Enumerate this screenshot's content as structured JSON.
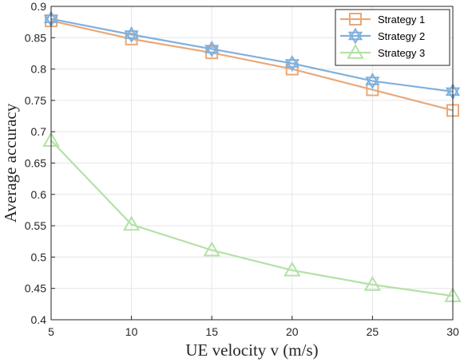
{
  "chart_data": {
    "type": "line",
    "title": "",
    "xlabel": "UE velocity v (m/s)",
    "ylabel": "Average accuracy",
    "x": [
      5,
      10,
      15,
      20,
      25,
      30
    ],
    "xlim": [
      5,
      30
    ],
    "ylim": [
      0.4,
      0.9
    ],
    "xticks": [
      "5",
      "10",
      "15",
      "20",
      "25",
      "30"
    ],
    "yticks": [
      "0.4",
      "0.45",
      "0.5",
      "0.55",
      "0.6",
      "0.65",
      "0.7",
      "0.75",
      "0.8",
      "0.85",
      "0.9"
    ],
    "grid": true,
    "legend_position": "top-right",
    "series": [
      {
        "name": "Strategy 1",
        "values": [
          0.877,
          0.848,
          0.826,
          0.8,
          0.767,
          0.734
        ],
        "color": "#E8A97A",
        "marker": "square"
      },
      {
        "name": "Strategy 2",
        "values": [
          0.88,
          0.855,
          0.832,
          0.809,
          0.781,
          0.764
        ],
        "color": "#7FB0DE",
        "marker": "hexagram"
      },
      {
        "name": "Strategy 3",
        "values": [
          0.686,
          0.552,
          0.511,
          0.479,
          0.456,
          0.438
        ],
        "color": "#B4E1A6",
        "marker": "triangle"
      }
    ]
  }
}
